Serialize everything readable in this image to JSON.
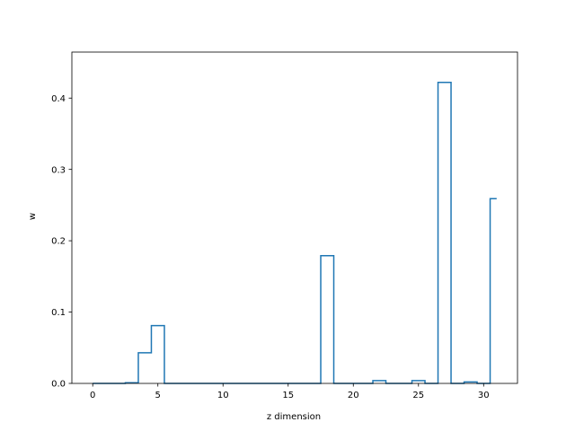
{
  "chart_data": {
    "type": "step",
    "title": "",
    "xlabel": "z dimension",
    "ylabel": "w",
    "xlim": [
      -1.6,
      32.6
    ],
    "ylim": [
      0,
      0.4645
    ],
    "xticks": [
      0,
      5,
      10,
      15,
      20,
      25,
      30
    ],
    "yticks": [
      0.0,
      0.1,
      0.2,
      0.3,
      0.4
    ],
    "ytick_labels": [
      "0.0",
      "0.1",
      "0.2",
      "0.3",
      "0.4"
    ],
    "grid": false,
    "line_color": "#1f77b4",
    "x": [
      0,
      1,
      2,
      3,
      4,
      5,
      6,
      7,
      8,
      9,
      10,
      11,
      12,
      13,
      14,
      15,
      16,
      17,
      18,
      19,
      20,
      21,
      22,
      23,
      24,
      25,
      26,
      27,
      28,
      29,
      30,
      31
    ],
    "values": [
      0,
      0,
      0,
      0.001,
      0.043,
      0.081,
      0,
      0,
      0,
      0,
      0,
      0,
      0,
      0,
      0,
      0,
      0,
      0,
      0.179,
      0,
      0,
      0,
      0.004,
      0,
      0,
      0.004,
      0,
      0.422,
      0,
      0.002,
      0,
      0.259
    ]
  }
}
